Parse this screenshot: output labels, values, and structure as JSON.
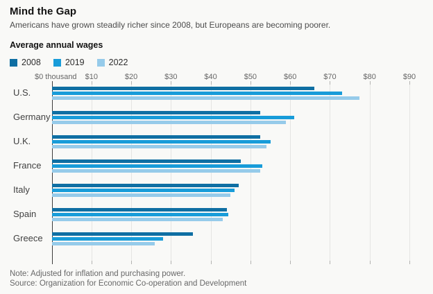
{
  "header": {
    "title": "Mind the Gap",
    "subtitle": "Americans have grown steadily richer since 2008, but Europeans are becoming poorer.",
    "chart_heading": "Average annual wages"
  },
  "footer": {
    "note": "Note: Adjusted for inflation and purchasing power.",
    "source": "Source: Organization for Economic Co-operation and Development"
  },
  "colors": {
    "series_2008": "#0f6fa3",
    "series_2019": "#189cd9",
    "series_2022": "#96cbea",
    "gridline": "#e5e5e3",
    "axis": "#3c3c3c",
    "background": "#f9f9f7"
  },
  "chart_data": {
    "type": "bar",
    "orientation": "horizontal",
    "title": "Average annual wages",
    "units": "thousand US dollars",
    "categories": [
      "U.S.",
      "Germany",
      "U.K.",
      "France",
      "Italy",
      "Spain",
      "Greece"
    ],
    "series": [
      {
        "name": "2008",
        "color": "#0f6fa3",
        "values": [
          66,
          52.5,
          52.5,
          47.5,
          47,
          44,
          35.5
        ]
      },
      {
        "name": "2019",
        "color": "#189cd9",
        "values": [
          73,
          61,
          55,
          53,
          46,
          44.5,
          28
        ]
      },
      {
        "name": "2022",
        "color": "#96cbea",
        "values": [
          77.5,
          59,
          54,
          52.5,
          45,
          43,
          26
        ]
      }
    ],
    "xlim": [
      0,
      90
    ],
    "x_tick_step": 10,
    "x_tick_labels": [
      "$0 thousand",
      "$10",
      "$20",
      "$30",
      "$40",
      "$50",
      "$60",
      "$70",
      "$80",
      "$90"
    ],
    "grid": true,
    "legend_position": "top-left"
  }
}
